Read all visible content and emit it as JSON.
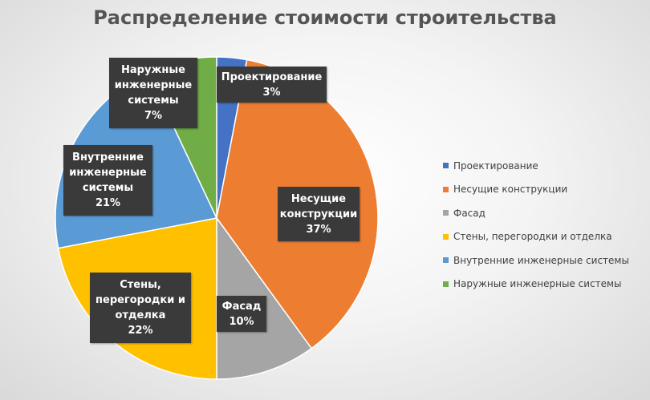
{
  "chart_data": {
    "type": "pie",
    "title": "Распределение стоимости строительства",
    "legend_position": "right",
    "slices": [
      {
        "name": "Проектирование",
        "label": "Проектирование",
        "value": 3,
        "percent_label": "3%",
        "color": "#4472C4"
      },
      {
        "name": "Несущие конструкции",
        "label": "Несущие\nконструкции",
        "value": 37,
        "percent_label": "37%",
        "color": "#ED7D31"
      },
      {
        "name": "Фасад",
        "label": "Фасад",
        "value": 10,
        "percent_label": "10%",
        "color": "#A5A5A5"
      },
      {
        "name": "Стены, перегородки и отделка",
        "label": "Стены,\nперегородки и\nотделка",
        "value": 22,
        "percent_label": "22%",
        "color": "#FFC000"
      },
      {
        "name": "Внутренние инженерные системы",
        "label": "Внутренние\nинженерные\nсистемы",
        "value": 21,
        "percent_label": "21%",
        "color": "#5B9BD5"
      },
      {
        "name": "Наружные инженерные системы",
        "label": "Наружные\nинженерные\nсистемы",
        "value": 7,
        "percent_label": "7%",
        "color": "#70AD47"
      }
    ]
  }
}
